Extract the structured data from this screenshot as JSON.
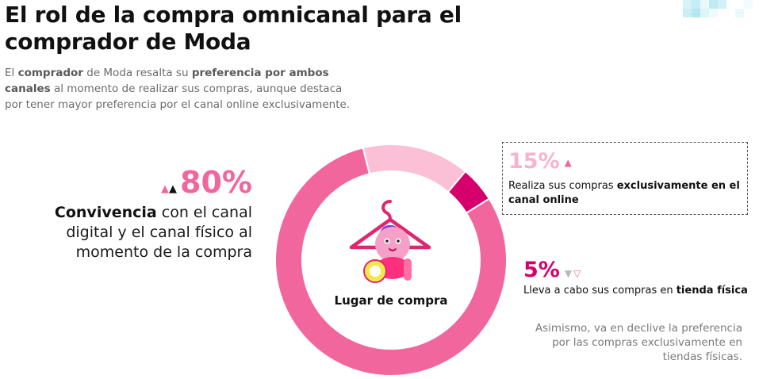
{
  "header": {
    "title": "El rol de la compra omnicanal para el comprador de Moda",
    "subtitle_parts": [
      {
        "text": "El ",
        "bold": false
      },
      {
        "text": "comprador",
        "bold": true
      },
      {
        "text": " de Moda resalta su ",
        "bold": false
      },
      {
        "text": "preferencia por ambos canales",
        "bold": true
      },
      {
        "text": " al momento de realizar sus compras, aunque destaca por tener mayor preferencia por el canal online exclusivamente.",
        "bold": false
      }
    ]
  },
  "chart_data": {
    "type": "pie",
    "variant": "donut",
    "center_label": "Lugar de compra",
    "categories": [
      "Convivencia con el canal digital y el canal físico al momento de la compra",
      "Realiza sus compras exclusivamente en el canal online",
      "Lleva a cabo sus compras en tienda física"
    ],
    "values": [
      80,
      15,
      5
    ],
    "colors": [
      "#f2669e",
      "#fbc0d6",
      "#d6006c"
    ]
  },
  "callouts": {
    "left": {
      "value": "80%",
      "text_parts": [
        {
          "text": "Convivencia",
          "bold": true
        },
        {
          "text": " con el canal digital y el canal físico al momento de la compra",
          "bold": false
        }
      ]
    },
    "top_right": {
      "value": "15%",
      "text_parts": [
        {
          "text": "Realiza sus compras ",
          "bold": false
        },
        {
          "text": "exclusivamente en el canal online",
          "bold": true
        }
      ]
    },
    "bottom_right": {
      "value": "5%",
      "text_parts": [
        {
          "text": "Lleva a cabo sus compras en ",
          "bold": false
        },
        {
          "text": "tienda física",
          "bold": true
        }
      ],
      "note": "Asimismo, va en declive la preferencia por las compras exclusivamente en tiendas físicas."
    }
  },
  "icons": {
    "center": "hanger-character-icon",
    "trend_up": "triangle-up-icon",
    "trend_down": "triangle-down-icon",
    "corner": "pixel-decoration-icon"
  }
}
